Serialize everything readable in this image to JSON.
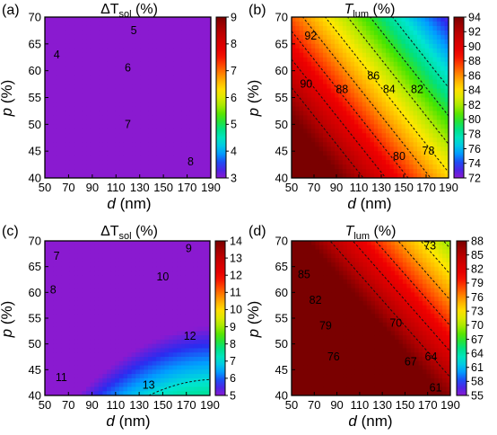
{
  "chart_data": [
    {
      "type": "heatmap",
      "panel_label": "(a)",
      "title": "ΔT_sol (%)",
      "title_main": "ΔT",
      "title_sub": "sol",
      "title_suffix": " (%)",
      "xlabel_var": "d",
      "xlabel_unit": " (nm)",
      "ylabel_var": "p",
      "ylabel_unit": " (%)",
      "x_ticks": [
        "50",
        "70",
        "90",
        "110",
        "130",
        "150",
        "170",
        "190"
      ],
      "y_ticks": [
        "40",
        "45",
        "50",
        "55",
        "60",
        "65",
        "70"
      ],
      "xlim": [
        50,
        190
      ],
      "ylim": [
        40,
        70
      ],
      "colorbar_ticks": [
        "3",
        "4",
        "5",
        "6",
        "7",
        "8",
        "9"
      ],
      "colorbar_range": [
        3,
        9
      ],
      "contour_levels": [
        "4",
        "5",
        "6",
        "7",
        "8"
      ],
      "field_model": {
        "c": 2.0,
        "a": 0.048,
        "b": 0.0,
        "d": -0.000125,
        "e": -0.145
      },
      "contour_label_points": [
        {
          "label": "4",
          "x": 60,
          "y": 63
        },
        {
          "label": "5",
          "x": 125,
          "y": 67.5
        },
        {
          "label": "6",
          "x": 120,
          "y": 60.5
        },
        {
          "label": "7",
          "x": 120,
          "y": 50
        },
        {
          "label": "8",
          "x": 173,
          "y": 43
        }
      ]
    },
    {
      "type": "heatmap",
      "panel_label": "(b)",
      "title": "T_lum (%)",
      "title_main": "T",
      "title_sub": "lum",
      "title_suffix": " (%)",
      "xlabel_var": "d",
      "xlabel_unit": " (nm)",
      "ylabel_var": "p",
      "ylabel_unit": " (%)",
      "x_ticks": [
        "50",
        "70",
        "90",
        "110",
        "130",
        "150",
        "170",
        "190"
      ],
      "y_ticks": [
        "40",
        "45",
        "50",
        "55",
        "60",
        "65",
        "70"
      ],
      "xlim": [
        50,
        190
      ],
      "ylim": [
        40,
        70
      ],
      "colorbar_ticks": [
        "72",
        "74",
        "76",
        "78",
        "80",
        "82",
        "84",
        "86",
        "88",
        "90",
        "92",
        "94"
      ],
      "colorbar_range": [
        72,
        94
      ],
      "contour_levels": [
        "78",
        "80",
        "82",
        "84",
        "86",
        "88",
        "90",
        "92"
      ],
      "field_model": {
        "c": 118.6,
        "a": -0.1,
        "b": 0.0,
        "d": 0.0,
        "e": -0.38
      },
      "contour_label_points": [
        {
          "label": "92",
          "x": 67,
          "y": 66.5
        },
        {
          "label": "90",
          "x": 63,
          "y": 57.5
        },
        {
          "label": "88",
          "x": 95,
          "y": 56.5
        },
        {
          "label": "86",
          "x": 123,
          "y": 59
        },
        {
          "label": "84",
          "x": 137,
          "y": 56.5
        },
        {
          "label": "82",
          "x": 162,
          "y": 56.5
        },
        {
          "label": "80",
          "x": 146,
          "y": 44
        },
        {
          "label": "78",
          "x": 172,
          "y": 45
        }
      ]
    },
    {
      "type": "heatmap",
      "panel_label": "(c)",
      "title": "ΔT_sol (%)",
      "title_main": "ΔT",
      "title_sub": "sol",
      "title_suffix": " (%)",
      "xlabel_var": "d",
      "xlabel_unit": " (nm)",
      "ylabel_var": "p",
      "ylabel_unit": " (%)",
      "x_ticks": [
        "50",
        "70",
        "90",
        "110",
        "130",
        "150",
        "170",
        "190"
      ],
      "y_ticks": [
        "40",
        "45",
        "50",
        "55",
        "60",
        "65",
        "70"
      ],
      "xlim": [
        50,
        190
      ],
      "ylim": [
        40,
        70
      ],
      "colorbar_ticks": [
        "5",
        "6",
        "7",
        "8",
        "9",
        "10",
        "11",
        "12",
        "13",
        "14"
      ],
      "colorbar_range": [
        5,
        14
      ],
      "contour_levels": [
        "7",
        "8",
        "9",
        "10",
        "11",
        "12",
        "13"
      ],
      "field_model": {
        "c": 8.2,
        "a": 0.074,
        "b": 0.0,
        "d": -0.00019,
        "e": -0.195
      },
      "contour_label_points": [
        {
          "label": "7",
          "x": 60,
          "y": 67
        },
        {
          "label": "8",
          "x": 57,
          "y": 60.5
        },
        {
          "label": "9",
          "x": 172,
          "y": 68.5
        },
        {
          "label": "10",
          "x": 150,
          "y": 63
        },
        {
          "label": "11",
          "x": 64,
          "y": 43.5
        },
        {
          "label": "12",
          "x": 173,
          "y": 51.5
        },
        {
          "label": "13",
          "x": 138,
          "y": 42
        }
      ]
    },
    {
      "type": "heatmap",
      "panel_label": "(d)",
      "title": "T_lum (%)",
      "title_main": "T",
      "title_sub": "lum",
      "title_suffix": " (%)",
      "xlabel_var": "d",
      "xlabel_unit": " (nm)",
      "ylabel_var": "p",
      "ylabel_unit": " (%)",
      "x_ticks": [
        "50",
        "70",
        "90",
        "110",
        "130",
        "150",
        "170",
        "190"
      ],
      "y_ticks": [
        "40",
        "45",
        "50",
        "55",
        "60",
        "65",
        "70"
      ],
      "xlim": [
        50,
        190
      ],
      "ylim": [
        40,
        70
      ],
      "colorbar_ticks": [
        "55",
        "58",
        "61",
        "64",
        "67",
        "70",
        "73",
        "76",
        "79",
        "82",
        "85",
        "88"
      ],
      "colorbar_range": [
        55,
        88
      ],
      "contour_levels": [
        "61",
        "64",
        "67",
        "70",
        "73",
        "76",
        "79",
        "82",
        "85"
      ],
      "field_model": {
        "c": 139.6,
        "a": -0.15,
        "b": 0.0,
        "d": 0.0,
        "e": -0.6
      },
      "contour_label_points": [
        {
          "label": "85",
          "x": 61,
          "y": 63.5
        },
        {
          "label": "82",
          "x": 71,
          "y": 58.5
        },
        {
          "label": "79",
          "x": 80,
          "y": 53.5
        },
        {
          "label": "76",
          "x": 87,
          "y": 47.5
        },
        {
          "label": "73",
          "x": 172,
          "y": 69
        },
        {
          "label": "70",
          "x": 142,
          "y": 54
        },
        {
          "label": "67",
          "x": 155,
          "y": 46.5
        },
        {
          "label": "64",
          "x": 173,
          "y": 47.5
        },
        {
          "label": "61",
          "x": 177,
          "y": 41.5
        }
      ]
    }
  ],
  "colormap": [
    "#8a1ad0",
    "#2a2cf0",
    "#00a0ff",
    "#00e5d2",
    "#00e080",
    "#44e400",
    "#b8ea00",
    "#ffe800",
    "#ffa600",
    "#ff5000",
    "#f00000",
    "#d40000",
    "#b00000",
    "#7a0000"
  ]
}
